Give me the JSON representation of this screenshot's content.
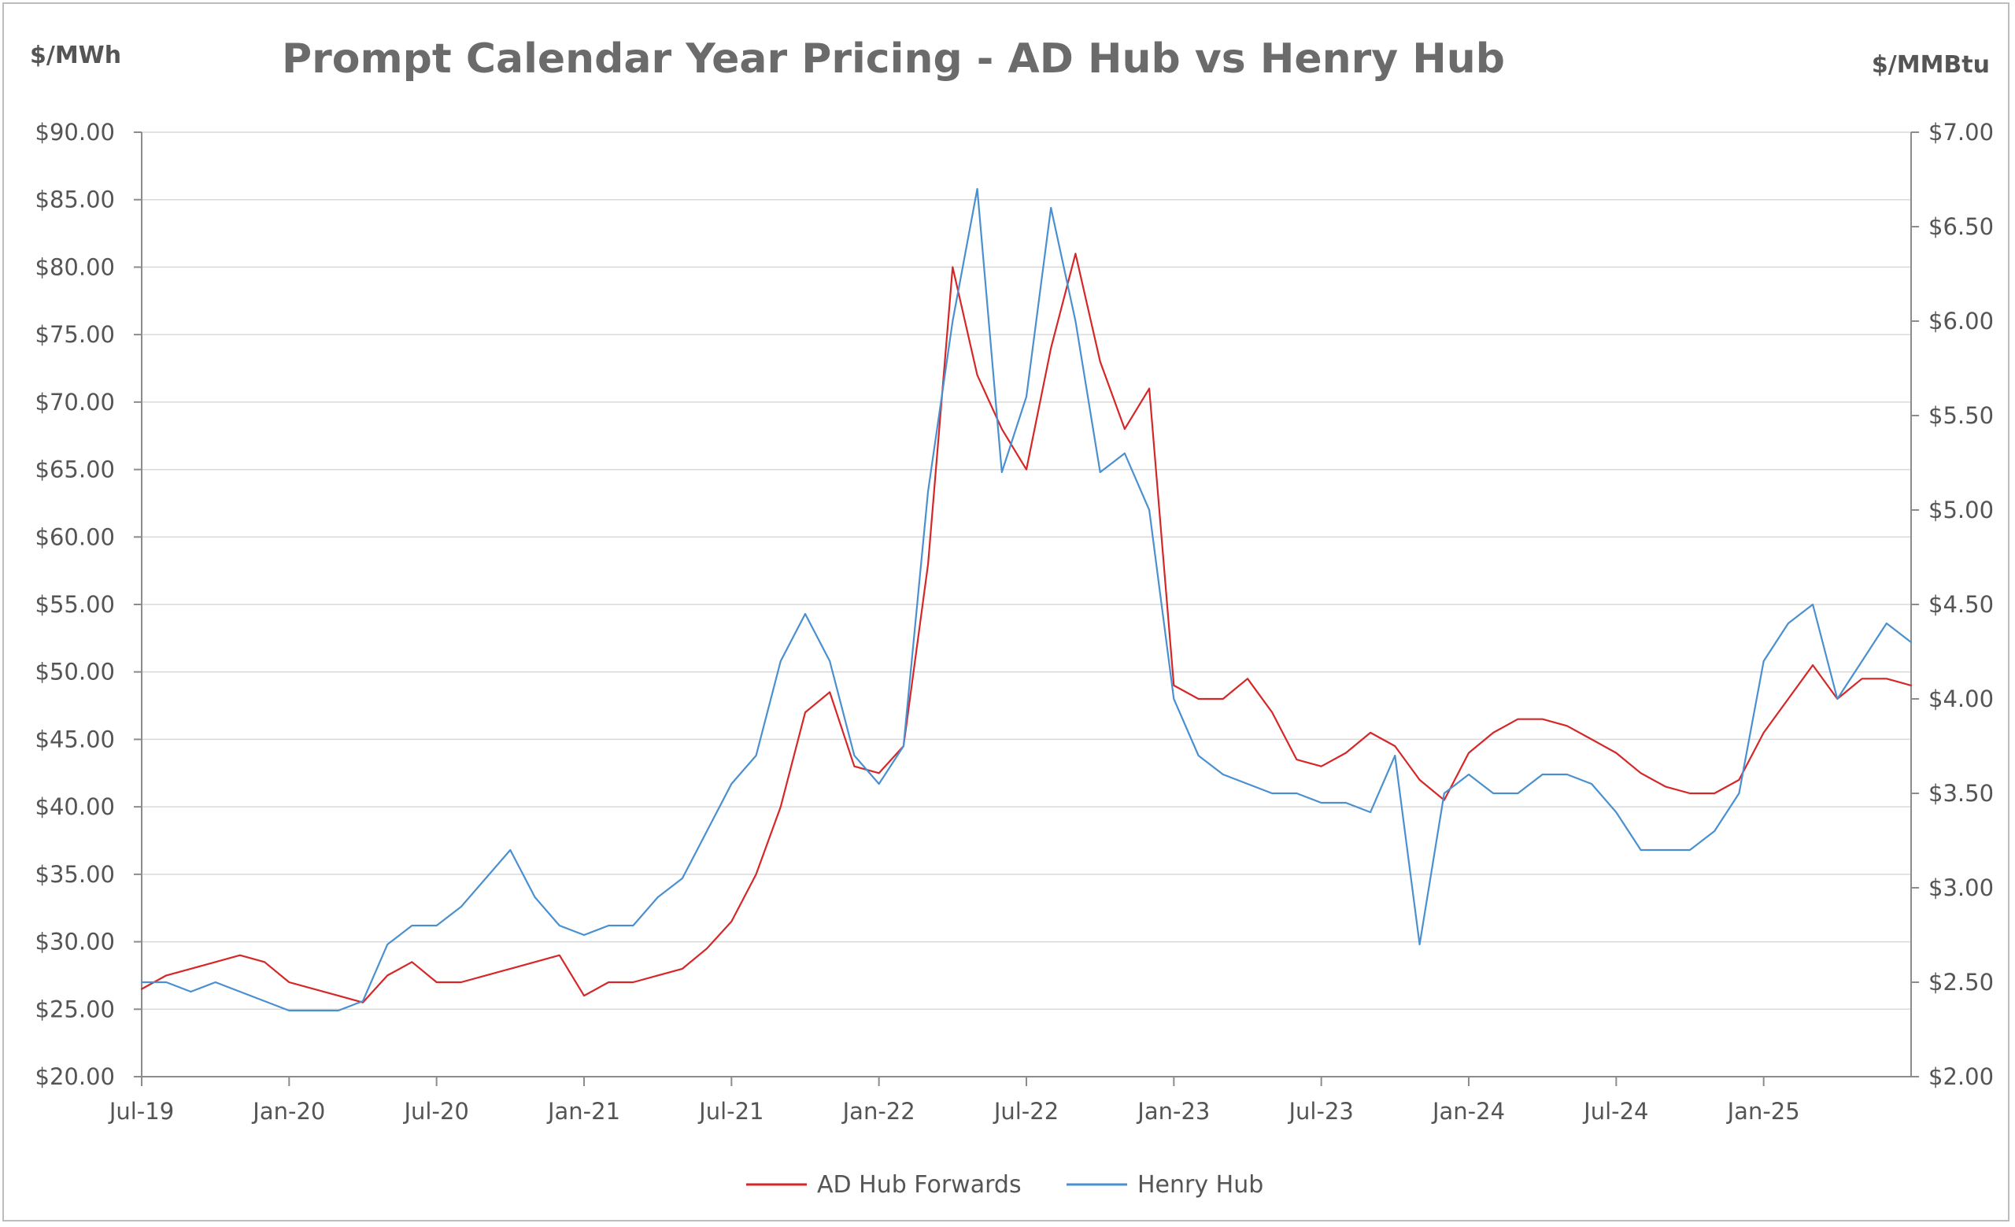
{
  "chart_data": {
    "type": "line",
    "title": "Prompt Calendar Year Pricing - AD Hub vs Henry Hub",
    "y_left_unit": "$/MWh",
    "y_right_unit": "$/MMBtu",
    "y_left_range": [
      20,
      90
    ],
    "y_right_range": [
      2.0,
      7.0
    ],
    "y_left_ticks": [
      "$20.00",
      "$25.00",
      "$30.00",
      "$35.00",
      "$40.00",
      "$45.00",
      "$50.00",
      "$55.00",
      "$60.00",
      "$65.00",
      "$70.00",
      "$75.00",
      "$80.00",
      "$85.00",
      "$90.00"
    ],
    "y_right_ticks": [
      "$2.00",
      "$2.50",
      "$3.00",
      "$3.50",
      "$4.00",
      "$4.50",
      "$5.00",
      "$5.50",
      "$6.00",
      "$6.50",
      "$7.00"
    ],
    "x_ticks": [
      "Jul-19",
      "Jan-20",
      "Jul-20",
      "Jan-21",
      "Jul-21",
      "Jan-22",
      "Jul-22",
      "Jan-23",
      "Jul-23",
      "Jan-24",
      "Jul-24",
      "Jan-25"
    ],
    "x_range": [
      "2019-07",
      "2025-07"
    ],
    "grid": "horizontal",
    "legend_position": "bottom",
    "series": [
      {
        "name": "AD Hub Forwards",
        "axis": "left",
        "color": "#d62728",
        "x": [
          "2019-07",
          "2019-08",
          "2019-09",
          "2019-10",
          "2019-11",
          "2019-12",
          "2020-01",
          "2020-02",
          "2020-03",
          "2020-04",
          "2020-05",
          "2020-06",
          "2020-07",
          "2020-08",
          "2020-09",
          "2020-10",
          "2020-11",
          "2020-12",
          "2021-01",
          "2021-02",
          "2021-03",
          "2021-04",
          "2021-05",
          "2021-06",
          "2021-07",
          "2021-08",
          "2021-09",
          "2021-10",
          "2021-11",
          "2021-12",
          "2022-01",
          "2022-02",
          "2022-03",
          "2022-04",
          "2022-05",
          "2022-06",
          "2022-07",
          "2022-08",
          "2022-09",
          "2022-10",
          "2022-11",
          "2022-12",
          "2023-01",
          "2023-02",
          "2023-03",
          "2023-04",
          "2023-05",
          "2023-06",
          "2023-07",
          "2023-08",
          "2023-09",
          "2023-10",
          "2023-11",
          "2023-12",
          "2024-01",
          "2024-02",
          "2024-03",
          "2024-04",
          "2024-05",
          "2024-06",
          "2024-07",
          "2024-08",
          "2024-09",
          "2024-10",
          "2024-11",
          "2024-12",
          "2025-01",
          "2025-02",
          "2025-03",
          "2025-04",
          "2025-05",
          "2025-06",
          "2025-07"
        ],
        "values": [
          26.5,
          27.5,
          28.0,
          28.5,
          29.0,
          28.5,
          27.0,
          26.5,
          26.0,
          25.5,
          27.5,
          28.5,
          27.0,
          27.0,
          27.5,
          28.0,
          28.5,
          29.0,
          26.0,
          27.0,
          27.0,
          27.5,
          28.0,
          29.5,
          31.5,
          35.0,
          40.0,
          47.0,
          48.5,
          43.0,
          42.5,
          44.5,
          58.0,
          80.0,
          72.0,
          68.0,
          65.0,
          74.0,
          81.0,
          73.0,
          68.0,
          71.0,
          49.0,
          48.0,
          48.0,
          49.5,
          47.0,
          43.5,
          43.0,
          44.0,
          45.5,
          44.5,
          42.0,
          40.5,
          44.0,
          45.5,
          46.5,
          46.5,
          46.0,
          45.0,
          44.0,
          42.5,
          41.5,
          41.0,
          41.0,
          42.0,
          45.5,
          48.0,
          50.5,
          48.0,
          49.5,
          49.5,
          49.0
        ]
      },
      {
        "name": "Henry Hub",
        "axis": "right",
        "color": "#4a90d0",
        "x": [
          "2019-07",
          "2019-08",
          "2019-09",
          "2019-10",
          "2019-11",
          "2019-12",
          "2020-01",
          "2020-02",
          "2020-03",
          "2020-04",
          "2020-05",
          "2020-06",
          "2020-07",
          "2020-08",
          "2020-09",
          "2020-10",
          "2020-11",
          "2020-12",
          "2021-01",
          "2021-02",
          "2021-03",
          "2021-04",
          "2021-05",
          "2021-06",
          "2021-07",
          "2021-08",
          "2021-09",
          "2021-10",
          "2021-11",
          "2021-12",
          "2022-01",
          "2022-02",
          "2022-03",
          "2022-04",
          "2022-05",
          "2022-06",
          "2022-07",
          "2022-08",
          "2022-09",
          "2022-10",
          "2022-11",
          "2022-12",
          "2023-01",
          "2023-02",
          "2023-03",
          "2023-04",
          "2023-05",
          "2023-06",
          "2023-07",
          "2023-08",
          "2023-09",
          "2023-10",
          "2023-11",
          "2023-12",
          "2024-01",
          "2024-02",
          "2024-03",
          "2024-04",
          "2024-05",
          "2024-06",
          "2024-07",
          "2024-08",
          "2024-09",
          "2024-10",
          "2024-11",
          "2024-12",
          "2025-01",
          "2025-02",
          "2025-03",
          "2025-04",
          "2025-05",
          "2025-06",
          "2025-07"
        ],
        "values": [
          2.5,
          2.5,
          2.45,
          2.5,
          2.45,
          2.4,
          2.35,
          2.35,
          2.35,
          2.4,
          2.7,
          2.8,
          2.8,
          2.9,
          3.05,
          3.2,
          2.95,
          2.8,
          2.75,
          2.8,
          2.8,
          2.95,
          3.05,
          3.3,
          3.55,
          3.7,
          4.2,
          4.45,
          4.2,
          3.7,
          3.55,
          3.75,
          5.1,
          6.0,
          6.7,
          5.2,
          5.6,
          6.6,
          6.0,
          5.2,
          5.3,
          5.0,
          4.0,
          3.7,
          3.6,
          3.55,
          3.5,
          3.5,
          3.45,
          3.45,
          3.4,
          3.7,
          2.7,
          3.5,
          3.6,
          3.5,
          3.5,
          3.6,
          3.6,
          3.55,
          3.4,
          3.2,
          3.2,
          3.2,
          3.3,
          3.5,
          4.2,
          4.4,
          4.5,
          4.0,
          4.2,
          4.4,
          4.3
        ]
      }
    ]
  }
}
